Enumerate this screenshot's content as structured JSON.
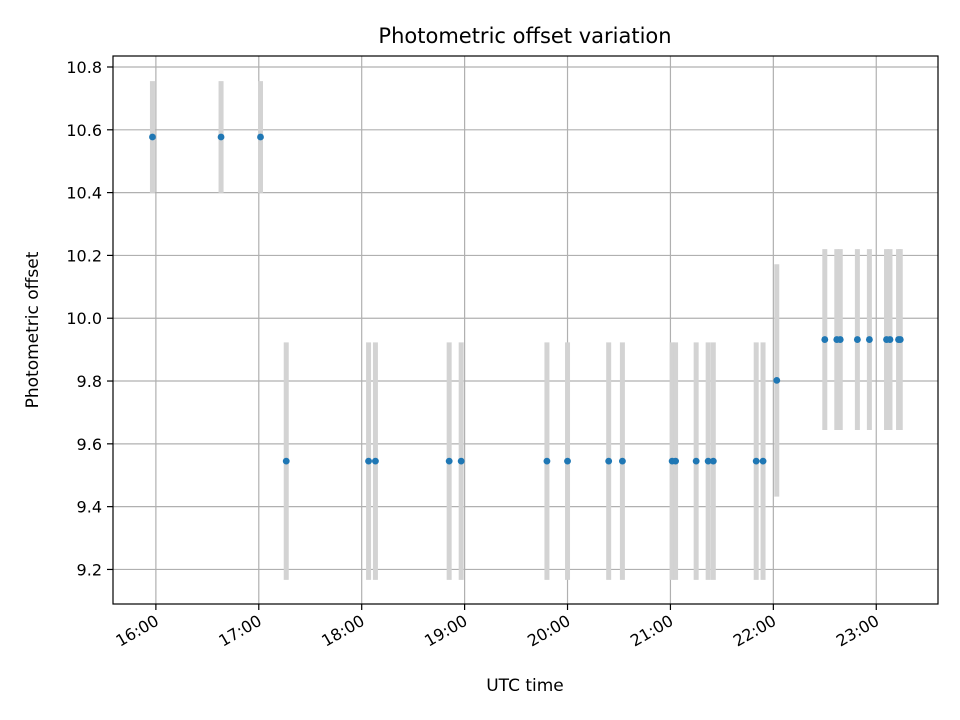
{
  "chart_data": {
    "type": "scatter",
    "title": "Photometric offset variation",
    "xlabel": "UTC time",
    "ylabel": "Photometric offset",
    "grid": true,
    "legend": "none",
    "x_ticks": [
      "16:00",
      "17:00",
      "18:00",
      "19:00",
      "20:00",
      "21:00",
      "22:00",
      "23:00"
    ],
    "y_ticks": [
      "9.2",
      "9.4",
      "9.6",
      "9.8",
      "10.0",
      "10.2",
      "10.4",
      "10.6",
      "10.8"
    ],
    "xlim": [
      "15:35",
      "23:36"
    ],
    "ylim": [
      9.09,
      10.835
    ],
    "marker_color": "#1f77b4",
    "errorbar_color": "#d3d3d3",
    "series": [
      {
        "points": [
          {
            "x": "15:58",
            "y": 10.577,
            "err": 0.178
          },
          {
            "x": "16:38",
            "y": 10.577,
            "err": 0.178
          },
          {
            "x": "17:01",
            "y": 10.577,
            "err": 0.178
          },
          {
            "x": "17:16",
            "y": 9.545,
            "err": 0.378
          },
          {
            "x": "18:04",
            "y": 9.545,
            "err": 0.378
          },
          {
            "x": "18:08",
            "y": 9.545,
            "err": 0.378
          },
          {
            "x": "18:51",
            "y": 9.545,
            "err": 0.378
          },
          {
            "x": "18:58",
            "y": 9.545,
            "err": 0.378
          },
          {
            "x": "19:48",
            "y": 9.545,
            "err": 0.378
          },
          {
            "x": "20:00",
            "y": 9.545,
            "err": 0.378
          },
          {
            "x": "20:24",
            "y": 9.545,
            "err": 0.378
          },
          {
            "x": "20:32",
            "y": 9.545,
            "err": 0.378
          },
          {
            "x": "21:01",
            "y": 9.545,
            "err": 0.378
          },
          {
            "x": "21:03",
            "y": 9.545,
            "err": 0.378
          },
          {
            "x": "21:15",
            "y": 9.545,
            "err": 0.378
          },
          {
            "x": "21:22",
            "y": 9.545,
            "err": 0.378
          },
          {
            "x": "21:25",
            "y": 9.545,
            "err": 0.378
          },
          {
            "x": "21:50",
            "y": 9.545,
            "err": 0.378
          },
          {
            "x": "21:54",
            "y": 9.545,
            "err": 0.378
          },
          {
            "x": "22:02",
            "y": 9.802,
            "err": 0.37
          },
          {
            "x": "22:30",
            "y": 9.932,
            "err": 0.288
          },
          {
            "x": "22:37",
            "y": 9.932,
            "err": 0.288
          },
          {
            "x": "22:39",
            "y": 9.932,
            "err": 0.288
          },
          {
            "x": "22:49",
            "y": 9.932,
            "err": 0.288
          },
          {
            "x": "22:56",
            "y": 9.932,
            "err": 0.288
          },
          {
            "x": "23:06",
            "y": 9.932,
            "err": 0.288
          },
          {
            "x": "23:08",
            "y": 9.932,
            "err": 0.288
          },
          {
            "x": "23:13",
            "y": 9.932,
            "err": 0.288
          },
          {
            "x": "23:14",
            "y": 9.932,
            "err": 0.288
          }
        ]
      }
    ]
  }
}
